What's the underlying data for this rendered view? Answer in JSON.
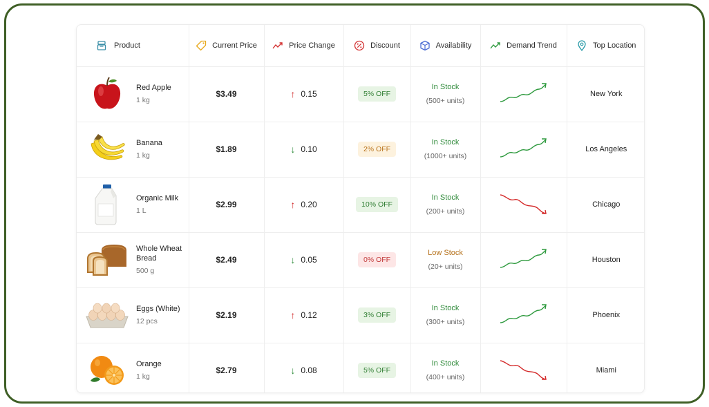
{
  "headers": {
    "product": "Product",
    "current_price": "Current Price",
    "price_change": "Price Change",
    "discount": "Discount",
    "availability": "Availability",
    "demand_trend": "Demand Trend",
    "top_location": "Top Location"
  },
  "colors": {
    "frame_border": "#3f5f26",
    "up_arrow": "#d02a2a",
    "down_arrow": "#2e8b3a",
    "trend_up": "#2e9a3e",
    "trend_down": "#d42b2b"
  },
  "rows": [
    {
      "name": "Red Apple",
      "size": "1 kg",
      "image": "red-apple",
      "price": "$3.49",
      "change_dir": "up",
      "change": "0.15",
      "discount": "5% OFF",
      "discount_tone": "green",
      "status": "In Stock",
      "status_tone": "green",
      "units": "(500+ units)",
      "trend": "up",
      "location": "New York"
    },
    {
      "name": "Banana",
      "size": "1 kg",
      "image": "banana",
      "price": "$1.89",
      "change_dir": "down",
      "change": "0.10",
      "discount": "2% OFF",
      "discount_tone": "amber",
      "status": "In Stock",
      "status_tone": "green",
      "units": "(1000+ units)",
      "trend": "up",
      "location": "Los Angeles"
    },
    {
      "name": "Organic Milk",
      "size": "1 L",
      "image": "milk-jug",
      "price": "$2.99",
      "change_dir": "up",
      "change": "0.20",
      "discount": "10% OFF",
      "discount_tone": "green",
      "status": "In Stock",
      "status_tone": "green",
      "units": "(200+ units)",
      "trend": "down",
      "location": "Chicago"
    },
    {
      "name": "Whole Wheat Bread",
      "size": "500 g",
      "image": "bread",
      "price": "$2.49",
      "change_dir": "down",
      "change": "0.05",
      "discount": "0% OFF",
      "discount_tone": "red",
      "status": "Low Stock",
      "status_tone": "amber",
      "units": "(20+ units)",
      "trend": "up",
      "location": "Houston"
    },
    {
      "name": "Eggs (White)",
      "size": "12 pcs",
      "image": "eggs",
      "price": "$2.19",
      "change_dir": "up",
      "change": "0.12",
      "discount": "3% OFF",
      "discount_tone": "green",
      "status": "In Stock",
      "status_tone": "green",
      "units": "(300+ units)",
      "trend": "up",
      "location": "Phoenix"
    },
    {
      "name": "Orange",
      "size": "1 kg",
      "image": "orange",
      "price": "$2.79",
      "change_dir": "down",
      "change": "0.08",
      "discount": "5% OFF",
      "discount_tone": "green",
      "status": "In Stock",
      "status_tone": "green",
      "units": "(400+ units)",
      "trend": "down",
      "location": "Miami"
    }
  ]
}
